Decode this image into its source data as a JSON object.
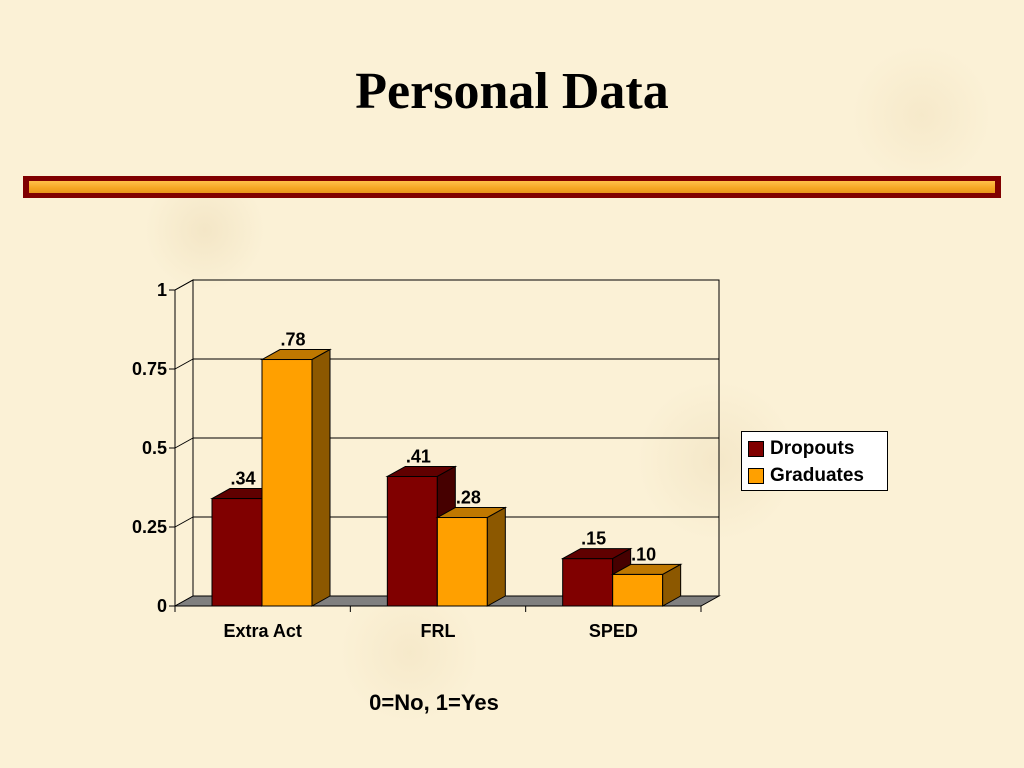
{
  "slide": {
    "title": "Personal Data"
  },
  "chart_data": {
    "type": "bar",
    "categories": [
      "Extra Act",
      "FRL",
      "SPED"
    ],
    "series": [
      {
        "name": "Dropouts",
        "values": [
          0.34,
          0.41,
          0.15
        ],
        "labels": [
          ".34",
          ".41",
          ".15"
        ],
        "color": "#800000"
      },
      {
        "name": "Graduates",
        "values": [
          0.78,
          0.28,
          0.1
        ],
        "labels": [
          ".78",
          ".28",
          ".10"
        ],
        "color": "#ffa000"
      }
    ],
    "yticks": [
      "0",
      "0.25",
      "0.5",
      "0.75",
      "1"
    ],
    "ylim": [
      0,
      1
    ],
    "grid": true,
    "legend_position": "right",
    "note": "0=No, 1=Yes"
  },
  "colors": {
    "background": "#fbf1d6",
    "rule_outer": "#800000",
    "rule_inner": "#f5a623"
  }
}
